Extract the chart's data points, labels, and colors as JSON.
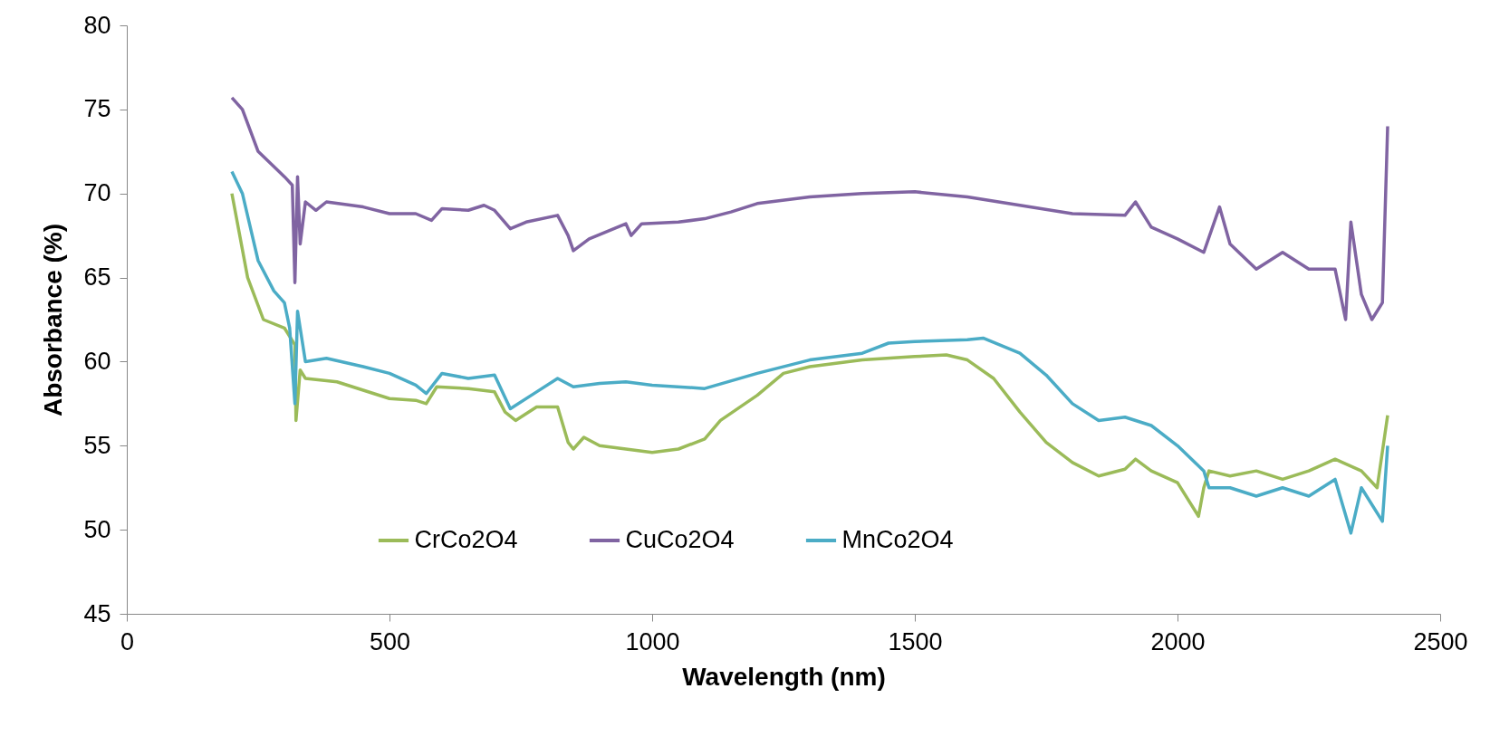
{
  "chart_data": {
    "type": "line",
    "xlabel": "Wavelength (nm)",
    "ylabel": "Absorbance (%)",
    "xlim": [
      0,
      2500
    ],
    "xticks": [
      0,
      500,
      1000,
      1500,
      2000,
      2500
    ],
    "ylim": [
      45,
      80
    ],
    "yticks": [
      45,
      50,
      55,
      60,
      65,
      70,
      75,
      80
    ],
    "grid": false,
    "legend": "bottom",
    "marker": "none",
    "line_style": "solid",
    "series": [
      {
        "name": "CrCo2O4",
        "color": "#9bbb59",
        "x": [
          200,
          230,
          260,
          300,
          320,
          322,
          330,
          340,
          400,
          450,
          500,
          550,
          570,
          590,
          650,
          700,
          720,
          740,
          780,
          820,
          840,
          850,
          870,
          900,
          1000,
          1050,
          1100,
          1130,
          1200,
          1250,
          1300,
          1400,
          1500,
          1560,
          1600,
          1650,
          1700,
          1750,
          1800,
          1850,
          1900,
          1920,
          1950,
          2000,
          2040,
          2050,
          2060,
          2100,
          2150,
          2200,
          2250,
          2300,
          2350,
          2380,
          2400
        ],
        "values": [
          70,
          65,
          62.5,
          62,
          61,
          56.5,
          59.5,
          59,
          58.8,
          58.3,
          57.8,
          57.7,
          57.5,
          58.5,
          58.4,
          58.2,
          57,
          56.5,
          57.3,
          57.3,
          55.2,
          54.8,
          55.5,
          55,
          54.6,
          54.8,
          55.4,
          56.5,
          58,
          59.3,
          59.7,
          60.1,
          60.3,
          60.4,
          60.1,
          59,
          57,
          55.2,
          54,
          53.2,
          53.6,
          54.2,
          53.5,
          52.8,
          50.8,
          52.5,
          53.5,
          53.2,
          53.5,
          53,
          53.5,
          54.2,
          53.5,
          52.5,
          56.8
        ]
      },
      {
        "name": "CuCo2O4",
        "color": "#8064a2",
        "x": [
          200,
          220,
          250,
          280,
          300,
          315,
          320,
          325,
          330,
          340,
          360,
          380,
          450,
          500,
          550,
          580,
          600,
          650,
          680,
          700,
          730,
          760,
          820,
          840,
          850,
          880,
          950,
          960,
          980,
          1050,
          1100,
          1150,
          1200,
          1300,
          1400,
          1500,
          1600,
          1700,
          1800,
          1900,
          1920,
          1950,
          2000,
          2050,
          2080,
          2100,
          2150,
          2200,
          2250,
          2300,
          2320,
          2330,
          2350,
          2370,
          2390,
          2400
        ],
        "values": [
          75.7,
          75,
          72.5,
          71.6,
          71,
          70.5,
          64.7,
          71,
          67,
          69.5,
          69,
          69.5,
          69.2,
          68.8,
          68.8,
          68.4,
          69.1,
          69,
          69.3,
          69,
          67.9,
          68.3,
          68.7,
          67.5,
          66.6,
          67.3,
          68.2,
          67.5,
          68.2,
          68.3,
          68.5,
          68.9,
          69.4,
          69.8,
          70,
          70.1,
          69.8,
          69.3,
          68.8,
          68.7,
          69.5,
          68,
          67.3,
          66.5,
          69.2,
          67,
          65.5,
          66.5,
          65.5,
          65.5,
          62.5,
          68.3,
          64,
          62.5,
          63.5,
          74
        ]
      },
      {
        "name": "MnCo2O4",
        "color": "#4bacc6",
        "x": [
          200,
          220,
          250,
          280,
          300,
          310,
          320,
          325,
          340,
          380,
          450,
          500,
          550,
          570,
          600,
          650,
          700,
          730,
          780,
          820,
          850,
          900,
          950,
          1000,
          1100,
          1200,
          1300,
          1400,
          1450,
          1500,
          1600,
          1630,
          1700,
          1750,
          1800,
          1850,
          1900,
          1950,
          2000,
          2050,
          2060,
          2100,
          2150,
          2200,
          2250,
          2300,
          2330,
          2350,
          2390,
          2400
        ],
        "values": [
          71.3,
          70,
          66,
          64.2,
          63.5,
          62,
          57.5,
          63,
          60,
          60.2,
          59.7,
          59.3,
          58.6,
          58.1,
          59.3,
          59,
          59.2,
          57.2,
          58.2,
          59,
          58.5,
          58.7,
          58.8,
          58.6,
          58.4,
          59.3,
          60.1,
          60.5,
          61.1,
          61.2,
          61.3,
          61.4,
          60.5,
          59.2,
          57.5,
          56.5,
          56.7,
          56.2,
          55,
          53.5,
          52.5,
          52.5,
          52,
          52.5,
          52,
          53,
          49.8,
          52.5,
          50.5,
          55
        ]
      }
    ]
  }
}
